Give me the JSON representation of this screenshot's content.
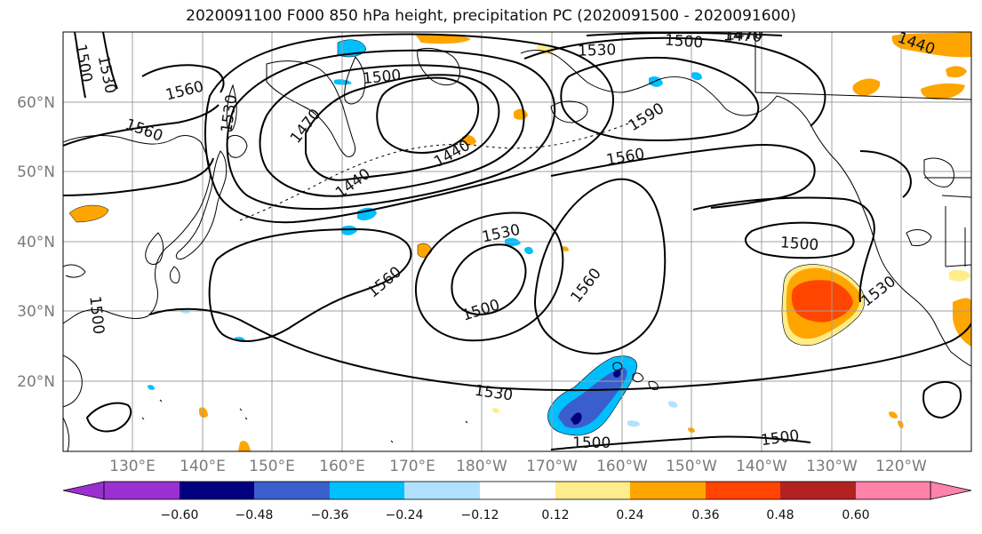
{
  "title": "2020091100 F000 850 hPa height, precipitation PC (2020091500 - 2020091600)",
  "lat_labels": [
    "60°N",
    "50°N",
    "40°N",
    "30°N",
    "20°N"
  ],
  "lon_labels": [
    "130°E",
    "140°E",
    "150°E",
    "160°E",
    "170°E",
    "180°W",
    "170°W",
    "160°W",
    "150°W",
    "140°W",
    "130°W",
    "120°W"
  ],
  "contour_labels": [
    "1500",
    "1530",
    "1560",
    "1470",
    "1500",
    "1530",
    "1500",
    "1470",
    "1440",
    "1560",
    "1530",
    "1470",
    "1440",
    "1440",
    "1560",
    "1590",
    "1560",
    "1530",
    "1500",
    "1560",
    "1500",
    "1560",
    "1500",
    "1530",
    "1530",
    "1500",
    "1500",
    "1500"
  ],
  "colorbar": {
    "colors": [
      "#9b30d0",
      "#000080",
      "#3a5fcd",
      "#00bfff",
      "#b0e2ff",
      "#ffffff",
      "#ffec8b",
      "#ffa500",
      "#ff4500",
      "#b22222",
      "#ff82ab"
    ],
    "tick_labels": [
      "−0.60",
      "−0.48",
      "−0.36",
      "−0.24",
      "−0.12",
      "0.12",
      "0.24",
      "0.36",
      "0.48",
      "0.60"
    ]
  },
  "map": {
    "lat_range": [
      10,
      70
    ],
    "lon_range_east": [
      120,
      250
    ],
    "contour_color": "#000000",
    "coast_color": "#000000",
    "grid_color": "#a0a0a0"
  }
}
